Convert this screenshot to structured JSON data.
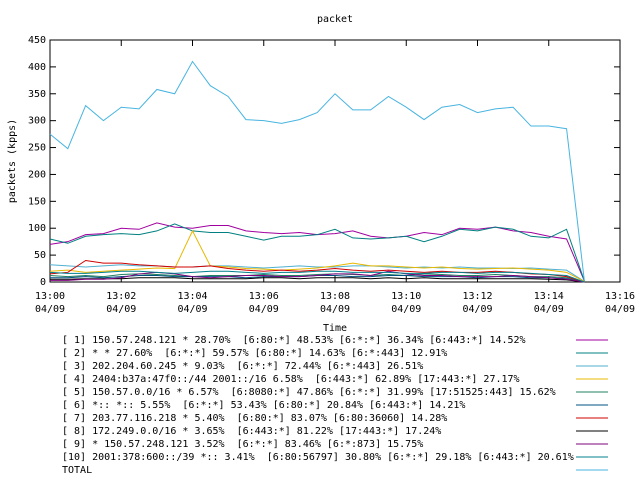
{
  "chart_data": {
    "type": "line",
    "title": "packet",
    "xlabel": "Time",
    "ylabel": "packets (kpps)",
    "xlim": [
      0,
      16
    ],
    "ylim": [
      0,
      450
    ],
    "xticks": [
      {
        "value": 0,
        "label": "13:00"
      },
      {
        "value": 2,
        "label": "13:02"
      },
      {
        "value": 4,
        "label": "13:04"
      },
      {
        "value": 6,
        "label": "13:06"
      },
      {
        "value": 8,
        "label": "13:08"
      },
      {
        "value": 10,
        "label": "13:10"
      },
      {
        "value": 12,
        "label": "13:12"
      },
      {
        "value": 14,
        "label": "13:14"
      },
      {
        "value": 16,
        "label": "13:16"
      }
    ],
    "xtick_dates": [
      "04/09",
      "04/09",
      "04/09",
      "04/09",
      "04/09",
      "04/09",
      "04/09",
      "04/09",
      "04/09"
    ],
    "yticks": [
      0,
      50,
      100,
      150,
      200,
      250,
      300,
      350,
      400,
      450
    ],
    "x": [
      0,
      0.5,
      1,
      1.5,
      2,
      2.5,
      3,
      3.5,
      4,
      4.5,
      5,
      5.5,
      6,
      6.5,
      7,
      7.5,
      8,
      8.5,
      9,
      9.5,
      10,
      10.5,
      11,
      11.5,
      12,
      12.5,
      13,
      13.5,
      14,
      14.5,
      15
    ],
    "series": [
      {
        "name": "[ 1] 150.57.248.121 * 28.70%  [6:80:*] 48.53% [6:*:*] 36.34% [6:443:*] 14.52%",
        "color": "#a000a0",
        "values": [
          70,
          75,
          88,
          90,
          100,
          98,
          110,
          102,
          100,
          105,
          105,
          95,
          92,
          90,
          92,
          88,
          90,
          95,
          85,
          82,
          85,
          92,
          88,
          100,
          98,
          102,
          95,
          92,
          85,
          80,
          2
        ]
      },
      {
        "name": "[ 2] * * 27.60%  [6:*:*] 59.57% [6:80:*] 14.63% [6:*:443] 12.91%",
        "color": "#008080",
        "values": [
          80,
          72,
          85,
          88,
          90,
          88,
          95,
          108,
          95,
          92,
          92,
          85,
          78,
          85,
          85,
          88,
          98,
          82,
          80,
          82,
          85,
          75,
          85,
          98,
          95,
          102,
          98,
          85,
          82,
          98,
          2
        ]
      },
      {
        "name": "[ 3] 202.204.60.245 * 9.03%  [6:*:*] 72.44% [6:*:443] 26.51%",
        "color": "#50b0d0",
        "values": [
          32,
          30,
          28,
          30,
          32,
          30,
          30,
          28,
          28,
          30,
          30,
          28,
          26,
          28,
          30,
          28,
          28,
          30,
          30,
          28,
          26,
          28,
          26,
          28,
          26,
          26,
          25,
          26,
          24,
          22,
          1
        ]
      },
      {
        "name": "[ 4] 2404:b37a:47f0::/44 2001::/16 6.58%  [6:443:*] 62.89% [17:443:*] 27.17%",
        "color": "#e8b800",
        "values": [
          20,
          22,
          18,
          20,
          22,
          24,
          26,
          25,
          95,
          30,
          28,
          25,
          24,
          22,
          24,
          26,
          30,
          35,
          30,
          30,
          28,
          26,
          28,
          25,
          24,
          25,
          26,
          24,
          22,
          18,
          1
        ]
      },
      {
        "name": "[ 5] 150.57.0.0/16 * 6.57%  [6:8080:*] 47.86% [6:*:*] 31.99% [17:51525:443] 15.62%",
        "color": "#208060",
        "values": [
          12,
          10,
          12,
          10,
          14,
          15,
          14,
          12,
          10,
          12,
          12,
          12,
          14,
          12,
          12,
          14,
          15,
          14,
          12,
          14,
          12,
          15,
          14,
          12,
          12,
          14,
          12,
          10,
          10,
          8,
          0
        ]
      },
      {
        "name": "[ 6] *:: *:: 5.55%  [6:*:*] 53.43% [6:80:*] 20.84% [6:443:*] 14.21%",
        "color": "#005080",
        "values": [
          8,
          8,
          10,
          8,
          10,
          12,
          12,
          10,
          10,
          10,
          10,
          8,
          10,
          10,
          10,
          12,
          12,
          10,
          10,
          12,
          12,
          10,
          10,
          10,
          8,
          10,
          10,
          8,
          8,
          6,
          0
        ]
      },
      {
        "name": "[ 7] 203.77.116.218 * 5.40%  [6:80:*] 83.07% [6:80:36060] 14.28%",
        "color": "#d00000",
        "values": [
          15,
          18,
          40,
          35,
          35,
          32,
          30,
          28,
          28,
          30,
          25,
          22,
          20,
          22,
          20,
          22,
          25,
          22,
          20,
          22,
          20,
          18,
          20,
          18,
          18,
          20,
          18,
          15,
          14,
          10,
          0
        ]
      },
      {
        "name": "[ 8] 172.249.0.0/16 * 3.65%  [6:443:*] 81.22% [17:443:*] 17.24%",
        "color": "#000000",
        "values": [
          5,
          5,
          6,
          6,
          6,
          8,
          8,
          8,
          6,
          6,
          6,
          6,
          8,
          8,
          6,
          8,
          8,
          8,
          6,
          8,
          6,
          8,
          6,
          6,
          6,
          6,
          6,
          6,
          5,
          4,
          0
        ]
      },
      {
        "name": "[ 9] * 150.57.248.121 3.52%  [6:*:*] 83.46% [6:*:873] 15.75%",
        "color": "#800080",
        "values": [
          3,
          3,
          5,
          5,
          8,
          15,
          18,
          15,
          10,
          8,
          10,
          12,
          12,
          10,
          10,
          12,
          15,
          15,
          12,
          20,
          15,
          12,
          12,
          10,
          10,
          10,
          12,
          10,
          8,
          5,
          0
        ]
      },
      {
        "name": "[10] 2001:378:600::/39 *:: 3.41%  [6:80:56797] 30.80% [6:*:*] 29.18% [6:443:*] 20.61%",
        "color": "#00808c",
        "values": [
          18,
          16,
          16,
          18,
          20,
          20,
          18,
          16,
          18,
          20,
          20,
          18,
          16,
          18,
          18,
          20,
          20,
          18,
          18,
          18,
          16,
          16,
          18,
          18,
          16,
          18,
          18,
          16,
          14,
          12,
          0
        ]
      },
      {
        "name": "TOTAL",
        "color": "#48b4e0",
        "values": [
          275,
          248,
          328,
          300,
          325,
          322,
          358,
          350,
          410,
          365,
          345,
          302,
          300,
          295,
          302,
          315,
          350,
          320,
          320,
          345,
          325,
          302,
          325,
          330,
          315,
          322,
          325,
          290,
          290,
          285,
          2
        ]
      }
    ]
  }
}
